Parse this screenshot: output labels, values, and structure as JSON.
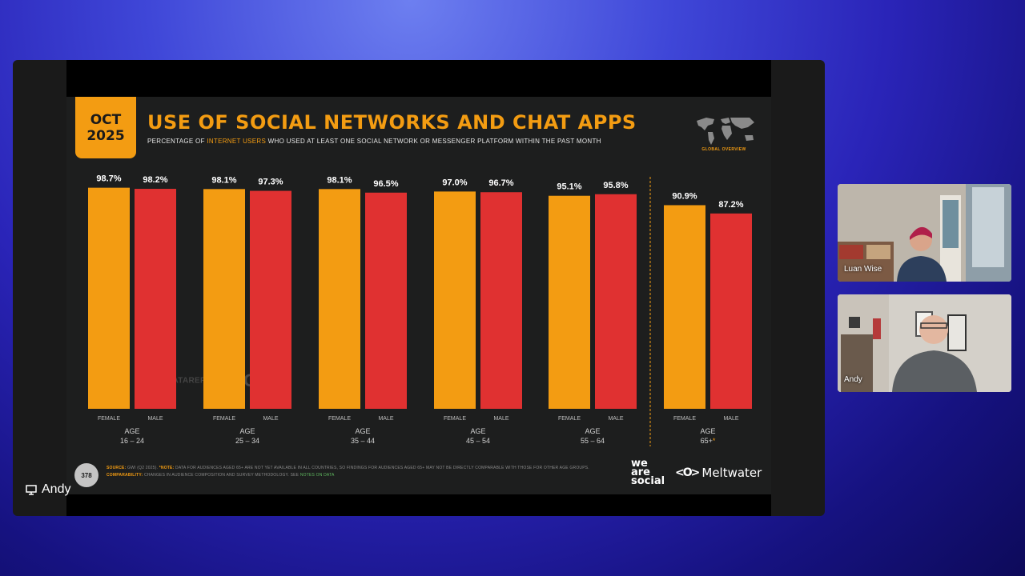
{
  "slide": {
    "date_top": "OCT",
    "date_bottom": "2025",
    "title": "USE OF SOCIAL NETWORKS AND CHAT APPS",
    "subtitle_pre": "PERCENTAGE OF ",
    "subtitle_hl": "INTERNET USERS",
    "subtitle_post": " WHO USED AT LEAST ONE SOCIAL NETWORK OR MESSENGER PLATFORM WITHIN THE PAST MONTH",
    "map_label": "GLOBAL OVERVIEW",
    "watermark_left": "DATAREPORTAL",
    "watermark_right": "GWI.",
    "page_number": "378",
    "footnote_source_label": "SOURCE:",
    "footnote_source": " GWI (Q2 2025). ",
    "footnote_note_label": "*NOTE:",
    "footnote_note": " DATA FOR AUDIENCES AGED 65+ ARE NOT YET AVAILABLE IN ALL COUNTRIES, SO FINDINGS FOR AUDIENCES AGED 65+ MAY NOT BE DIRECTLY COMPARABLE WITH THOSE FOR OTHER AGE GROUPS. ",
    "footnote_comp_label": "COMPARABILITY:",
    "footnote_comp": " CHANGES IN AUDIENCE COMPOSITION AND SURVEY METHODOLOGY. SEE ",
    "footnote_link": "NOTES ON DATA",
    "brand_was_1": "we",
    "brand_was_2": "are",
    "brand_was_3": "social",
    "brand_meltwater_icon": "<O>",
    "brand_meltwater": "Meltwater"
  },
  "presenter": {
    "name": "Andy",
    "icon": "screen-share-icon"
  },
  "participants": [
    {
      "name": "Luan Wise"
    },
    {
      "name": "Andy"
    }
  ],
  "colors": {
    "female": "#f39c12",
    "male": "#e03131",
    "accent": "#f39c12"
  },
  "chart_data": {
    "type": "bar",
    "series": [
      {
        "name": "FEMALE",
        "values": [
          98.7,
          98.1,
          98.1,
          97.0,
          95.1,
          90.9
        ],
        "labels": [
          "98.7%",
          "98.1%",
          "98.1%",
          "97.0%",
          "95.1%",
          "90.9%"
        ]
      },
      {
        "name": "MALE",
        "values": [
          98.2,
          97.3,
          96.5,
          96.7,
          95.8,
          87.2
        ],
        "labels": [
          "98.2%",
          "97.3%",
          "96.5%",
          "96.7%",
          "95.8%",
          "87.2%"
        ]
      }
    ],
    "group_prefix": "AGE",
    "categories": [
      "16 – 24",
      "25 – 34",
      "35 – 44",
      "45 – 54",
      "55 – 64",
      "65+"
    ],
    "category_marks": [
      "",
      "",
      "",
      "",
      "",
      "*"
    ],
    "ylim": [
      0,
      100
    ],
    "grid": false,
    "separator_before_last": true
  }
}
